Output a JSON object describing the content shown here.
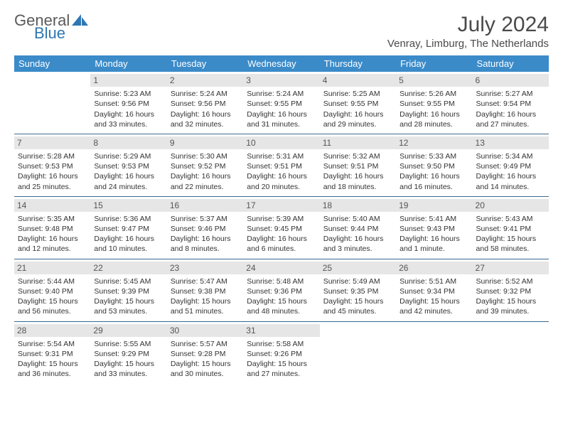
{
  "logo": {
    "word1": "General",
    "word2": "Blue"
  },
  "colors": {
    "header_bg": "#3b8bc9",
    "header_text": "#ffffff",
    "row_border": "#3b6a8f",
    "daynum_bg": "#e6e6e6",
    "text": "#333333",
    "logo_gray": "#5a5a5a",
    "logo_blue": "#2f77b3"
  },
  "title": "July 2024",
  "location": "Venray, Limburg, The Netherlands",
  "weekdays": [
    "Sunday",
    "Monday",
    "Tuesday",
    "Wednesday",
    "Thursday",
    "Friday",
    "Saturday"
  ],
  "weeks": [
    [
      null,
      {
        "n": "1",
        "sr": "Sunrise: 5:23 AM",
        "ss": "Sunset: 9:56 PM",
        "d1": "Daylight: 16 hours",
        "d2": "and 33 minutes."
      },
      {
        "n": "2",
        "sr": "Sunrise: 5:24 AM",
        "ss": "Sunset: 9:56 PM",
        "d1": "Daylight: 16 hours",
        "d2": "and 32 minutes."
      },
      {
        "n": "3",
        "sr": "Sunrise: 5:24 AM",
        "ss": "Sunset: 9:55 PM",
        "d1": "Daylight: 16 hours",
        "d2": "and 31 minutes."
      },
      {
        "n": "4",
        "sr": "Sunrise: 5:25 AM",
        "ss": "Sunset: 9:55 PM",
        "d1": "Daylight: 16 hours",
        "d2": "and 29 minutes."
      },
      {
        "n": "5",
        "sr": "Sunrise: 5:26 AM",
        "ss": "Sunset: 9:55 PM",
        "d1": "Daylight: 16 hours",
        "d2": "and 28 minutes."
      },
      {
        "n": "6",
        "sr": "Sunrise: 5:27 AM",
        "ss": "Sunset: 9:54 PM",
        "d1": "Daylight: 16 hours",
        "d2": "and 27 minutes."
      }
    ],
    [
      {
        "n": "7",
        "sr": "Sunrise: 5:28 AM",
        "ss": "Sunset: 9:53 PM",
        "d1": "Daylight: 16 hours",
        "d2": "and 25 minutes."
      },
      {
        "n": "8",
        "sr": "Sunrise: 5:29 AM",
        "ss": "Sunset: 9:53 PM",
        "d1": "Daylight: 16 hours",
        "d2": "and 24 minutes."
      },
      {
        "n": "9",
        "sr": "Sunrise: 5:30 AM",
        "ss": "Sunset: 9:52 PM",
        "d1": "Daylight: 16 hours",
        "d2": "and 22 minutes."
      },
      {
        "n": "10",
        "sr": "Sunrise: 5:31 AM",
        "ss": "Sunset: 9:51 PM",
        "d1": "Daylight: 16 hours",
        "d2": "and 20 minutes."
      },
      {
        "n": "11",
        "sr": "Sunrise: 5:32 AM",
        "ss": "Sunset: 9:51 PM",
        "d1": "Daylight: 16 hours",
        "d2": "and 18 minutes."
      },
      {
        "n": "12",
        "sr": "Sunrise: 5:33 AM",
        "ss": "Sunset: 9:50 PM",
        "d1": "Daylight: 16 hours",
        "d2": "and 16 minutes."
      },
      {
        "n": "13",
        "sr": "Sunrise: 5:34 AM",
        "ss": "Sunset: 9:49 PM",
        "d1": "Daylight: 16 hours",
        "d2": "and 14 minutes."
      }
    ],
    [
      {
        "n": "14",
        "sr": "Sunrise: 5:35 AM",
        "ss": "Sunset: 9:48 PM",
        "d1": "Daylight: 16 hours",
        "d2": "and 12 minutes."
      },
      {
        "n": "15",
        "sr": "Sunrise: 5:36 AM",
        "ss": "Sunset: 9:47 PM",
        "d1": "Daylight: 16 hours",
        "d2": "and 10 minutes."
      },
      {
        "n": "16",
        "sr": "Sunrise: 5:37 AM",
        "ss": "Sunset: 9:46 PM",
        "d1": "Daylight: 16 hours",
        "d2": "and 8 minutes."
      },
      {
        "n": "17",
        "sr": "Sunrise: 5:39 AM",
        "ss": "Sunset: 9:45 PM",
        "d1": "Daylight: 16 hours",
        "d2": "and 6 minutes."
      },
      {
        "n": "18",
        "sr": "Sunrise: 5:40 AM",
        "ss": "Sunset: 9:44 PM",
        "d1": "Daylight: 16 hours",
        "d2": "and 3 minutes."
      },
      {
        "n": "19",
        "sr": "Sunrise: 5:41 AM",
        "ss": "Sunset: 9:43 PM",
        "d1": "Daylight: 16 hours",
        "d2": "and 1 minute."
      },
      {
        "n": "20",
        "sr": "Sunrise: 5:43 AM",
        "ss": "Sunset: 9:41 PM",
        "d1": "Daylight: 15 hours",
        "d2": "and 58 minutes."
      }
    ],
    [
      {
        "n": "21",
        "sr": "Sunrise: 5:44 AM",
        "ss": "Sunset: 9:40 PM",
        "d1": "Daylight: 15 hours",
        "d2": "and 56 minutes."
      },
      {
        "n": "22",
        "sr": "Sunrise: 5:45 AM",
        "ss": "Sunset: 9:39 PM",
        "d1": "Daylight: 15 hours",
        "d2": "and 53 minutes."
      },
      {
        "n": "23",
        "sr": "Sunrise: 5:47 AM",
        "ss": "Sunset: 9:38 PM",
        "d1": "Daylight: 15 hours",
        "d2": "and 51 minutes."
      },
      {
        "n": "24",
        "sr": "Sunrise: 5:48 AM",
        "ss": "Sunset: 9:36 PM",
        "d1": "Daylight: 15 hours",
        "d2": "and 48 minutes."
      },
      {
        "n": "25",
        "sr": "Sunrise: 5:49 AM",
        "ss": "Sunset: 9:35 PM",
        "d1": "Daylight: 15 hours",
        "d2": "and 45 minutes."
      },
      {
        "n": "26",
        "sr": "Sunrise: 5:51 AM",
        "ss": "Sunset: 9:34 PM",
        "d1": "Daylight: 15 hours",
        "d2": "and 42 minutes."
      },
      {
        "n": "27",
        "sr": "Sunrise: 5:52 AM",
        "ss": "Sunset: 9:32 PM",
        "d1": "Daylight: 15 hours",
        "d2": "and 39 minutes."
      }
    ],
    [
      {
        "n": "28",
        "sr": "Sunrise: 5:54 AM",
        "ss": "Sunset: 9:31 PM",
        "d1": "Daylight: 15 hours",
        "d2": "and 36 minutes."
      },
      {
        "n": "29",
        "sr": "Sunrise: 5:55 AM",
        "ss": "Sunset: 9:29 PM",
        "d1": "Daylight: 15 hours",
        "d2": "and 33 minutes."
      },
      {
        "n": "30",
        "sr": "Sunrise: 5:57 AM",
        "ss": "Sunset: 9:28 PM",
        "d1": "Daylight: 15 hours",
        "d2": "and 30 minutes."
      },
      {
        "n": "31",
        "sr": "Sunrise: 5:58 AM",
        "ss": "Sunset: 9:26 PM",
        "d1": "Daylight: 15 hours",
        "d2": "and 27 minutes."
      },
      null,
      null,
      null
    ]
  ]
}
